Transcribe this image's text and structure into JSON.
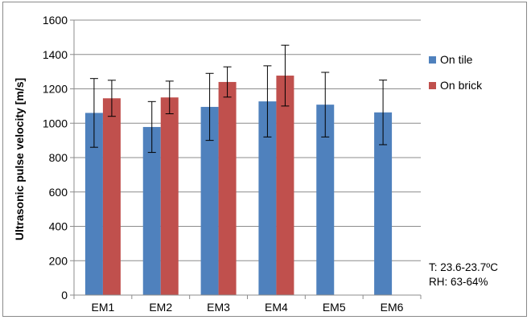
{
  "chart_data": {
    "type": "bar",
    "categories": [
      "EM1",
      "EM2",
      "EM3",
      "EM4",
      "EM5",
      "EM6"
    ],
    "series": [
      {
        "name": "On tile",
        "color": "#4f81bd",
        "values": [
          1060,
          978,
          1095,
          1127,
          1108,
          1063
        ],
        "error": [
          200,
          148,
          195,
          207,
          188,
          188
        ]
      },
      {
        "name": "On brick",
        "color": "#c0504d",
        "values": [
          1145,
          1150,
          1240,
          1277,
          null,
          null
        ],
        "error": [
          105,
          95,
          88,
          177,
          null,
          null
        ]
      }
    ],
    "ylabel": "Ultrasonic pulse velocity [m/s]",
    "xlabel": "",
    "ylim": [
      0,
      1600
    ],
    "yticks": [
      0,
      200,
      400,
      600,
      800,
      1000,
      1200,
      1400,
      1600
    ],
    "grid": true,
    "legend": "right"
  },
  "annotation": {
    "line1": "T: 23.6-23.7ºC",
    "line2": "RH: 63-64%"
  }
}
